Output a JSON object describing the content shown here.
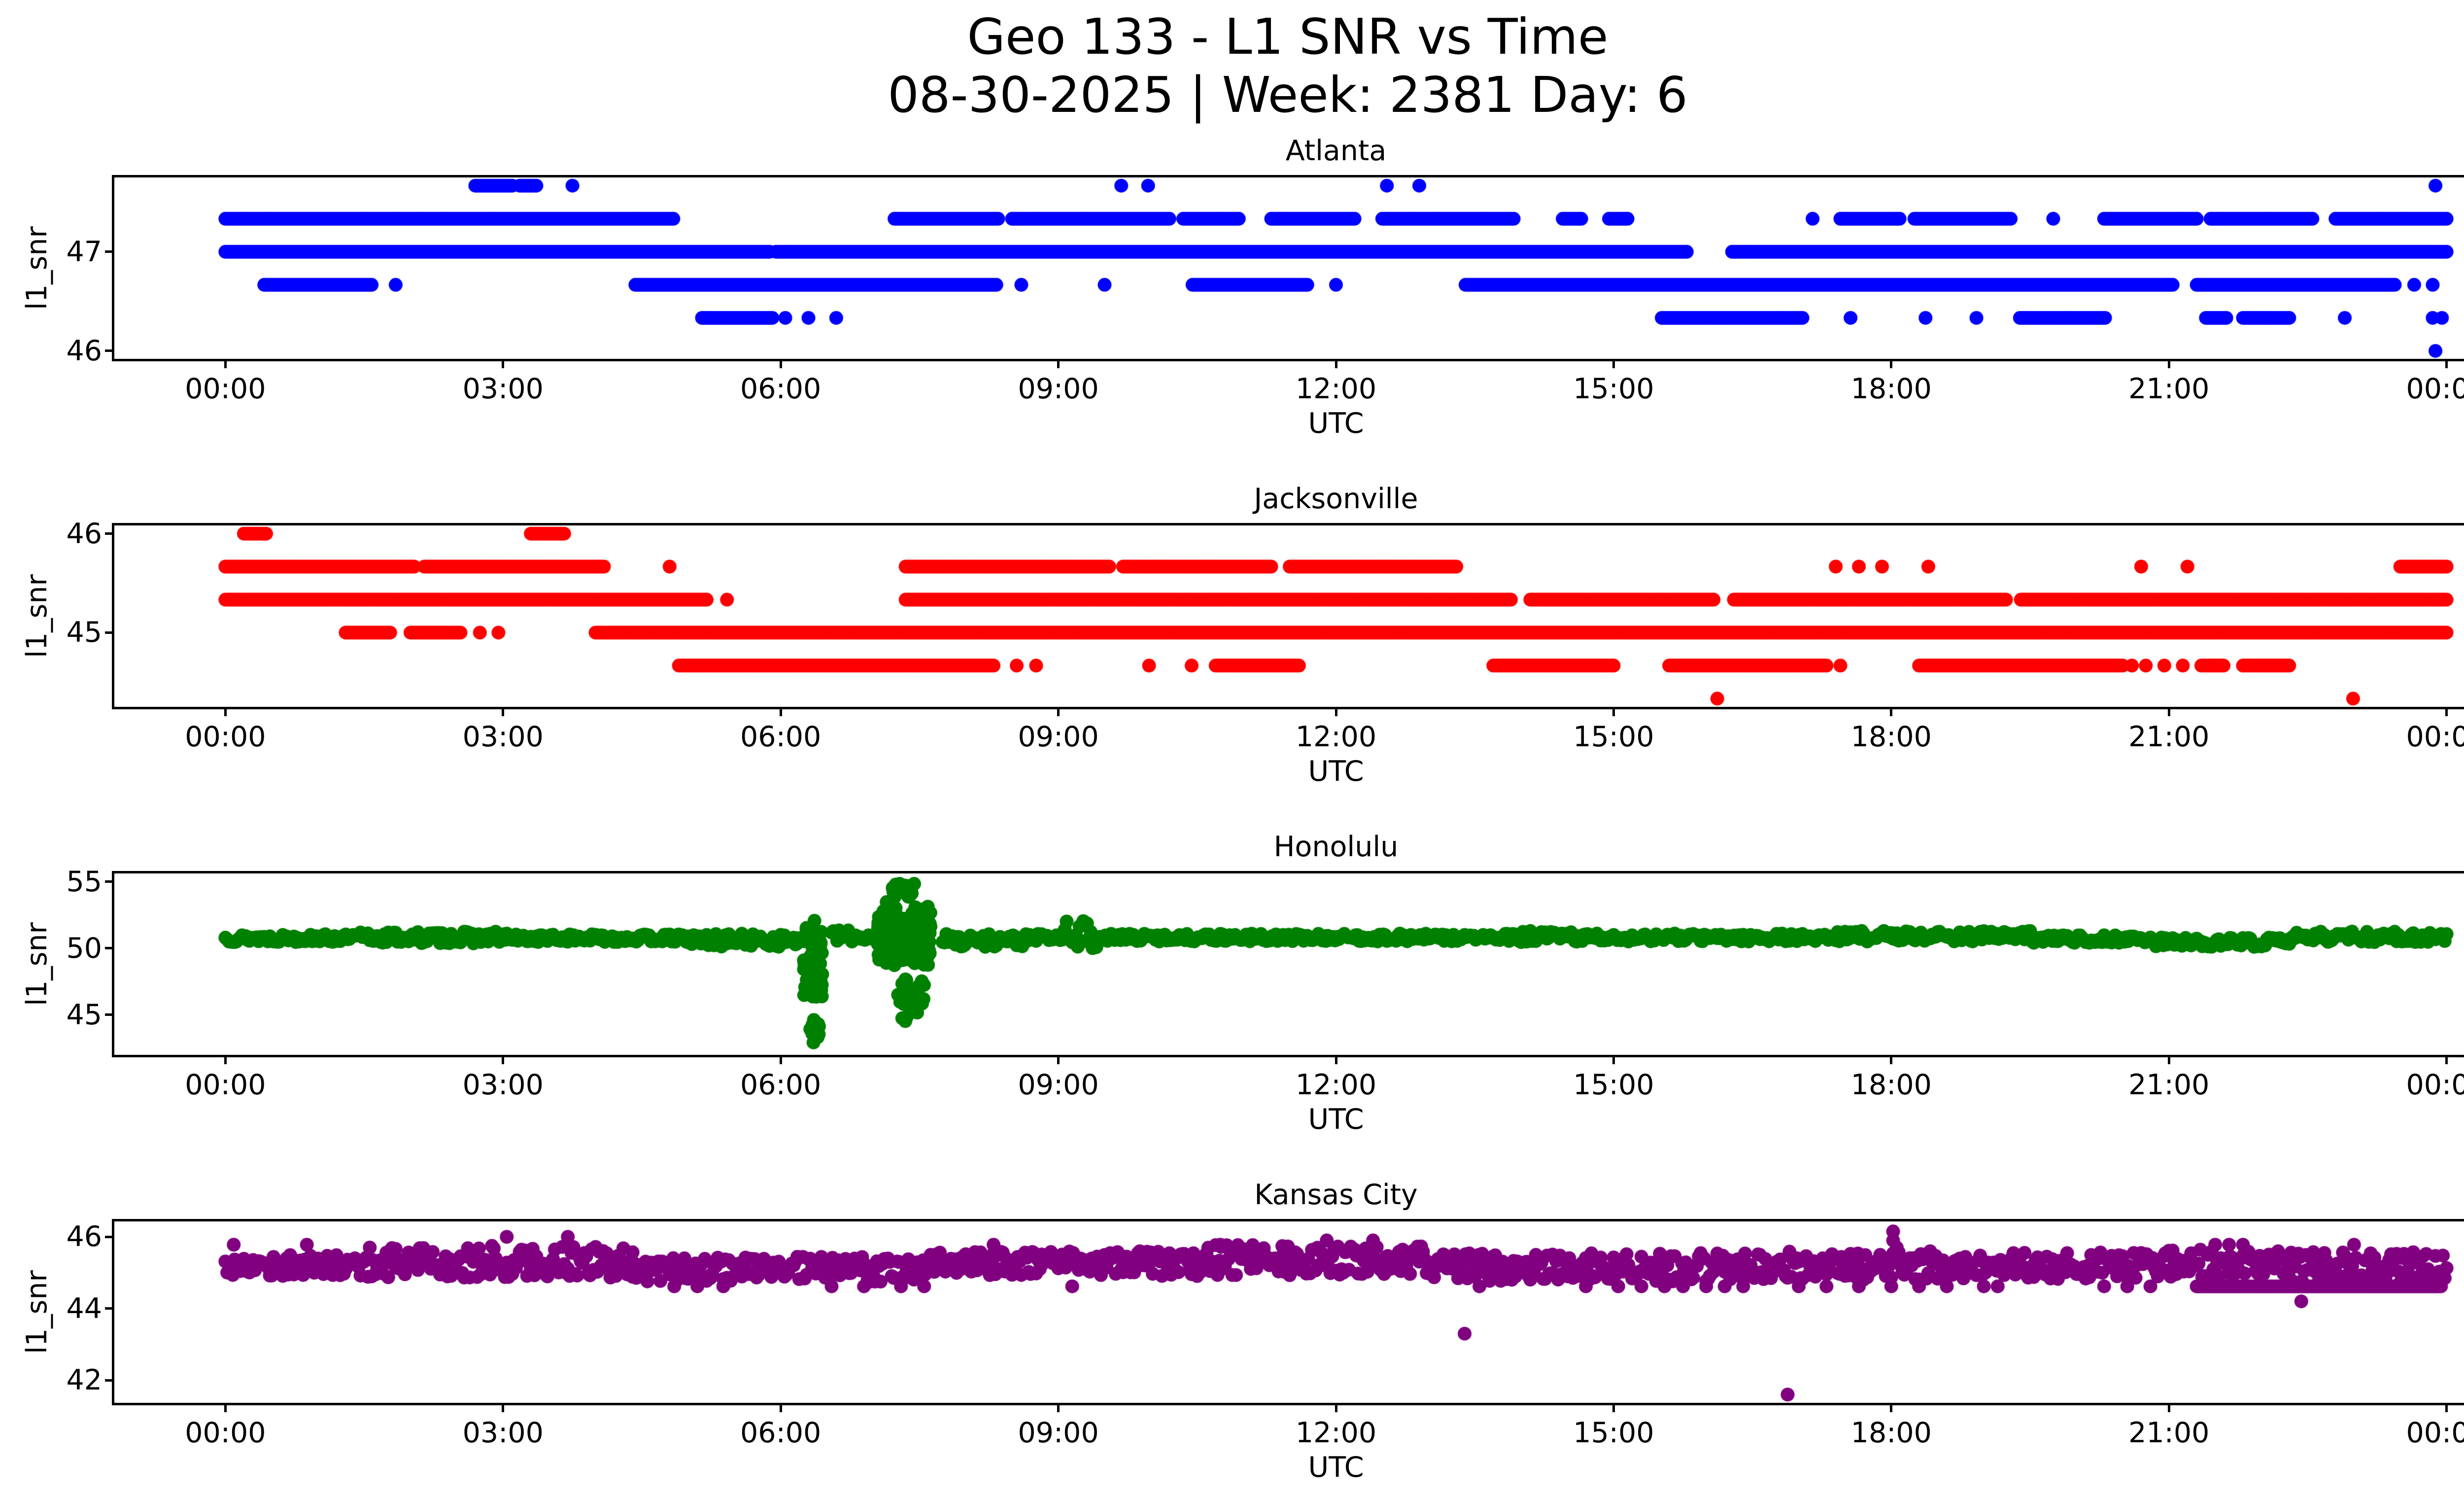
{
  "figure": {
    "title_line1": "Geo 133 - L1 SNR vs Time",
    "title_line2": "08-30-2025 | Week: 2381 Day: 6",
    "background": "#ffffff",
    "text_color": "#000000"
  },
  "chart_data": [
    {
      "type": "scatter",
      "title": "Atlanta",
      "color": "#0000ff",
      "xlabel": "UTC",
      "ylabel": "l1_snr",
      "xlim": [
        -1.2,
        25.2
      ],
      "ylim": [
        45.92,
        47.75
      ],
      "yticks": [
        46,
        47
      ],
      "xticks": [
        0,
        3,
        6,
        9,
        12,
        15,
        18,
        21,
        24
      ],
      "xtick_labels": [
        "00:00",
        "03:00",
        "06:00",
        "09:00",
        "12:00",
        "15:00",
        "18:00",
        "21:00",
        "00:00"
      ],
      "seed": 7,
      "bands": [
        {
          "snr": 47.667,
          "segments": [
            [
              2.7,
              3.12
            ],
            [
              3.18,
              3.38
            ]
          ],
          "dots": [
            3.75,
            9.68,
            9.97,
            12.55,
            12.9,
            23.88
          ]
        },
        {
          "snr": 47.333,
          "segments": [
            [
              0.0,
              4.85
            ],
            [
              7.23,
              8.35
            ],
            [
              8.5,
              10.2
            ],
            [
              10.35,
              10.96
            ],
            [
              11.3,
              12.2
            ],
            [
              12.5,
              13.92
            ],
            [
              14.45,
              14.65
            ],
            [
              14.95,
              15.15
            ],
            [
              17.45,
              18.1
            ],
            [
              18.25,
              19.3
            ],
            [
              20.3,
              21.3
            ],
            [
              21.45,
              22.55
            ],
            [
              22.8,
              24.0
            ]
          ],
          "dots": [
            17.15,
            19.75
          ]
        },
        {
          "snr": 47.0,
          "segments": [
            [
              0.0,
              5.88
            ],
            [
              5.95,
              15.8
            ],
            [
              16.28,
              24.0
            ]
          ],
          "dots": []
        },
        {
          "snr": 46.667,
          "segments": [
            [
              0.42,
              1.6
            ],
            [
              4.43,
              8.33
            ],
            [
              10.45,
              11.7
            ],
            [
              13.4,
              21.05
            ],
            [
              21.3,
              23.45
            ]
          ],
          "dots": [
            1.84,
            8.6,
            9.5,
            12.0,
            23.65,
            23.85
          ]
        },
        {
          "snr": 46.333,
          "segments": [
            [
              5.15,
              5.91
            ],
            [
              15.52,
              17.05
            ],
            [
              19.39,
              20.32
            ],
            [
              21.4,
              21.62
            ],
            [
              21.8,
              22.3
            ]
          ],
          "dots": [
            6.05,
            6.3,
            6.6,
            17.56,
            18.37,
            18.92,
            22.1,
            22.9,
            23.85,
            23.95
          ]
        },
        {
          "snr": 46.0,
          "segments": [],
          "dots": [
            23.88
          ]
        }
      ],
      "noise": [],
      "bursts": [],
      "outliers": []
    },
    {
      "type": "scatter",
      "title": "Jacksonville",
      "color": "#ff0000",
      "xlabel": "UTC",
      "ylabel": "l1_snr",
      "xlim": [
        -1.2,
        25.2
      ],
      "ylim": [
        44.25,
        46.083
      ],
      "yticks": [
        45,
        46
      ],
      "xticks": [
        0,
        3,
        6,
        9,
        12,
        15,
        18,
        21,
        24
      ],
      "xtick_labels": [
        "00:00",
        "03:00",
        "06:00",
        "09:00",
        "12:00",
        "15:00",
        "18:00",
        "21:00",
        "00:00"
      ],
      "seed": 11,
      "bands": [
        {
          "snr": 46.0,
          "segments": [
            [
              0.2,
              0.46
            ],
            [
              3.3,
              3.66
            ]
          ],
          "dots": []
        },
        {
          "snr": 45.667,
          "segments": [
            [
              0.0,
              2.05
            ],
            [
              2.15,
              4.1
            ],
            [
              7.35,
              9.55
            ],
            [
              9.7,
              11.3
            ],
            [
              11.5,
              13.3
            ],
            [
              23.5,
              24.0
            ]
          ],
          "dots": [
            4.8,
            17.4,
            17.65,
            17.9,
            18.4,
            20.7,
            21.2
          ]
        },
        {
          "snr": 45.333,
          "segments": [
            [
              0.0,
              5.2
            ],
            [
              7.35,
              13.9
            ],
            [
              14.1,
              16.08
            ],
            [
              16.3,
              19.25
            ],
            [
              19.4,
              24.0
            ]
          ],
          "dots": [
            5.42
          ]
        },
        {
          "snr": 45.0,
          "segments": [
            [
              1.3,
              1.8
            ],
            [
              2.0,
              2.55
            ],
            [
              4.0,
              24.0
            ]
          ],
          "dots": [
            2.75,
            2.95
          ]
        },
        {
          "snr": 44.667,
          "segments": [
            [
              4.9,
              8.3
            ],
            [
              10.7,
              11.6
            ],
            [
              13.7,
              15.0
            ],
            [
              15.6,
              17.3
            ],
            [
              18.3,
              20.5
            ],
            [
              21.35,
              21.6
            ],
            [
              21.8,
              22.3
            ]
          ],
          "dots": [
            8.55,
            8.76,
            9.98,
            10.44,
            17.45,
            20.6,
            20.75,
            20.95,
            21.15
          ]
        },
        {
          "snr": 44.333,
          "segments": [],
          "dots": [
            16.12,
            22.99
          ]
        }
      ],
      "noise": [],
      "bursts": [],
      "outliers": []
    },
    {
      "type": "scatter",
      "title": "Honolulu",
      "color": "#008000",
      "xlabel": "UTC",
      "ylabel": "l1_snr",
      "xlim": [
        -1.2,
        25.2
      ],
      "ylim": [
        41.98,
        55.62
      ],
      "yticks": [
        45,
        50,
        55
      ],
      "xticks": [
        0,
        3,
        6,
        9,
        12,
        15,
        18,
        21,
        24
      ],
      "xtick_labels": [
        "00:00",
        "03:00",
        "06:00",
        "09:00",
        "12:00",
        "15:00",
        "18:00",
        "21:00",
        "00:00"
      ],
      "seed": 13,
      "bands": [],
      "noise": [
        {
          "t0": 0.0,
          "t1": 1.4,
          "mean": 50.75,
          "spread": 0.3
        },
        {
          "t0": 1.4,
          "t1": 3.1,
          "mean": 50.8,
          "spread": 0.45
        },
        {
          "t0": 3.1,
          "t1": 5.0,
          "mean": 50.75,
          "spread": 0.3
        },
        {
          "t0": 5.0,
          "t1": 6.2,
          "mean": 50.6,
          "spread": 0.5
        },
        {
          "t0": 6.55,
          "t1": 7.05,
          "mean": 50.9,
          "spread": 0.45
        },
        {
          "t0": 7.75,
          "t1": 8.7,
          "mean": 50.6,
          "spread": 0.5
        },
        {
          "t0": 8.7,
          "t1": 9.05,
          "mean": 50.8,
          "spread": 0.3
        },
        {
          "t0": 9.05,
          "t1": 9.45,
          "mean": 51.0,
          "spread": 1.1
        },
        {
          "t0": 9.45,
          "t1": 14.0,
          "mean": 50.8,
          "spread": 0.3
        },
        {
          "t0": 14.0,
          "t1": 14.7,
          "mean": 50.85,
          "spread": 0.45
        },
        {
          "t0": 14.7,
          "t1": 17.3,
          "mean": 50.8,
          "spread": 0.3
        },
        {
          "t0": 17.3,
          "t1": 19.5,
          "mean": 50.9,
          "spread": 0.4
        },
        {
          "t0": 19.5,
          "t1": 20.8,
          "mean": 50.7,
          "spread": 0.3
        },
        {
          "t0": 20.8,
          "t1": 22.3,
          "mean": 50.45,
          "spread": 0.35
        },
        {
          "t0": 22.3,
          "t1": 24.0,
          "mean": 50.85,
          "spread": 0.4
        }
      ],
      "bursts": [
        {
          "t0": 6.25,
          "t1": 6.45,
          "lo": 45.5,
          "hi": 52.3,
          "n": 70
        },
        {
          "t0": 6.3,
          "t1": 6.42,
          "lo": 42.6,
          "hi": 45.5,
          "n": 12
        },
        {
          "t0": 7.05,
          "t1": 7.62,
          "lo": 48.3,
          "hi": 53.6,
          "n": 220
        },
        {
          "t0": 7.25,
          "t1": 7.55,
          "lo": 44.2,
          "hi": 48.3,
          "n": 30
        },
        {
          "t0": 7.2,
          "t1": 7.5,
          "lo": 53.6,
          "hi": 55.0,
          "n": 20
        }
      ],
      "outliers": []
    },
    {
      "type": "scatter",
      "title": "Kansas City",
      "color": "#800080",
      "xlabel": "UTC",
      "ylabel": "l1_snr",
      "xlim": [
        -1.2,
        25.2
      ],
      "ylim": [
        41.37,
        46.43
      ],
      "yticks": [
        42,
        44,
        46
      ],
      "xticks": [
        0,
        3,
        6,
        9,
        12,
        15,
        18,
        21,
        24
      ],
      "xtick_labels": [
        "00:00",
        "03:00",
        "06:00",
        "09:00",
        "12:00",
        "15:00",
        "18:00",
        "21:00",
        "00:00"
      ],
      "seed": 17,
      "bands": [
        {
          "snr": 45.78,
          "segments": [],
          "dots": [
            0.09,
            0.88,
            8.3,
            10.75,
            21.5,
            21.65,
            21.8,
            23.0
          ]
        },
        {
          "snr": 46.0,
          "segments": [],
          "dots": [
            3.04,
            3.7
          ]
        },
        {
          "snr": 45.9,
          "segments": [],
          "dots": [
            11.9,
            12.4
          ]
        },
        {
          "snr": 44.62,
          "segments": [
            [
              21.3,
              23.95
            ]
          ],
          "dots": [
            4.85,
            5.1,
            5.38,
            6.55,
            6.9,
            7.3,
            7.55,
            9.15,
            13.55,
            14.7,
            15.05,
            15.3,
            15.55,
            15.75,
            16.0,
            16.2,
            16.4,
            17.0,
            17.3,
            17.65,
            18.0,
            18.3,
            18.6,
            19.0,
            19.15,
            20.3,
            20.55,
            20.8
          ]
        }
      ],
      "noise": [
        {
          "t0": 0.0,
          "t1": 1.5,
          "mean": 45.2,
          "spread": 0.32
        },
        {
          "t0": 1.5,
          "t1": 4.4,
          "mean": 45.3,
          "spread": 0.45
        },
        {
          "t0": 4.4,
          "t1": 7.6,
          "mean": 45.1,
          "spread": 0.35
        },
        {
          "t0": 7.6,
          "t1": 10.6,
          "mean": 45.25,
          "spread": 0.35
        },
        {
          "t0": 10.6,
          "t1": 13.0,
          "mean": 45.35,
          "spread": 0.42
        },
        {
          "t0": 13.0,
          "t1": 16.4,
          "mean": 45.15,
          "spread": 0.4
        },
        {
          "t0": 16.4,
          "t1": 20.4,
          "mean": 45.2,
          "spread": 0.4
        },
        {
          "t0": 20.4,
          "t1": 22.3,
          "mean": 45.25,
          "spread": 0.4
        },
        {
          "t0": 22.3,
          "t1": 24.0,
          "mean": 45.1,
          "spread": 0.48
        }
      ],
      "bursts": [],
      "outliers": [
        [
          13.39,
          43.3
        ],
        [
          16.88,
          41.6
        ],
        [
          22.43,
          44.2
        ],
        [
          18.02,
          46.15
        ],
        [
          18.02,
          45.9
        ],
        [
          18.06,
          45.7
        ]
      ]
    }
  ]
}
